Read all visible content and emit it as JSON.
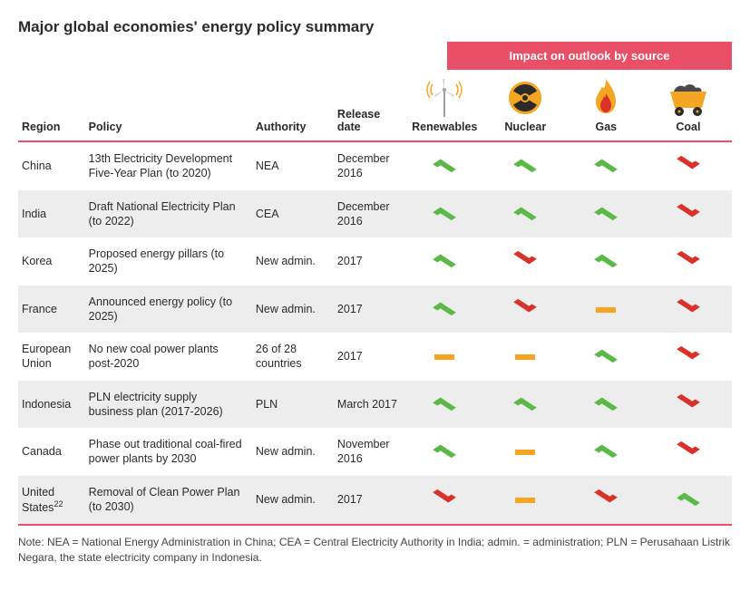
{
  "title": "Major global economies' energy policy summary",
  "banner": "Impact on outlook by source",
  "cols": {
    "region": "Region",
    "policy": "Policy",
    "authority": "Authority",
    "release": "Release date",
    "renewables": "Renewables",
    "nuclear": "Nuclear",
    "gas": "Gas",
    "coal": "Coal"
  },
  "glyph_colors": {
    "up": "#5bb947",
    "down": "#d9322b",
    "flat": "#f4a623"
  },
  "rows": [
    {
      "region": "China",
      "policy": "13th Electricity Development Five-Year Plan (to 2020)",
      "authority": "NEA",
      "release": "December 2016",
      "renewables": "up",
      "nuclear": "up",
      "gas": "up",
      "coal": "down"
    },
    {
      "region": "India",
      "policy": "Draft National Electricity Plan (to 2022)",
      "authority": "CEA",
      "release": "December 2016",
      "renewables": "up",
      "nuclear": "up",
      "gas": "up",
      "coal": "down"
    },
    {
      "region": "Korea",
      "policy": "Proposed energy pillars (to 2025)",
      "authority": "New admin.",
      "release": "2017",
      "renewables": "up",
      "nuclear": "down",
      "gas": "up",
      "coal": "down"
    },
    {
      "region": "France",
      "policy": "Announced energy policy (to 2025)",
      "authority": "New admin.",
      "release": "2017",
      "renewables": "up",
      "nuclear": "down",
      "gas": "flat",
      "coal": "down"
    },
    {
      "region": "European Union",
      "policy": "No new coal power plants post-2020",
      "authority": "26 of 28 countries",
      "release": "2017",
      "renewables": "flat",
      "nuclear": "flat",
      "gas": "up",
      "coal": "down"
    },
    {
      "region": "Indonesia",
      "policy": "PLN electricity supply business plan (2017-2026)",
      "authority": "PLN",
      "release": "March 2017",
      "renewables": "up",
      "nuclear": "up",
      "gas": "up",
      "coal": "down"
    },
    {
      "region": "Canada",
      "policy": "Phase out traditional coal-fired power plants by 2030",
      "authority": "New admin.",
      "release": "November 2016",
      "renewables": "up",
      "nuclear": "flat",
      "gas": "up",
      "coal": "down"
    },
    {
      "region": "United States",
      "region_sup": "22",
      "policy": "Removal of Clean Power Plan (to 2030)",
      "authority": "New admin.",
      "release": "2017",
      "renewables": "down",
      "nuclear": "flat",
      "gas": "down",
      "coal": "up"
    }
  ],
  "note": "Note: NEA = National Energy Administration in China; CEA = Central Electricity Authority in India; admin. = administration; PLN = Perusahaan Listrik Negara, the state electricity company in Indonesia.",
  "icon_colors": {
    "wind_pole": "#9aa0a6",
    "wind_signal": "#f4a623",
    "nuclear_bg": "#f4a623",
    "nuclear_fg": "#2b2b2b",
    "gas_flame": "#f4a623",
    "gas_inner": "#d9322b",
    "coal_body": "#f4a623",
    "coal_wheel": "#2b2b2b",
    "coal_load": "#4a4a4a"
  }
}
